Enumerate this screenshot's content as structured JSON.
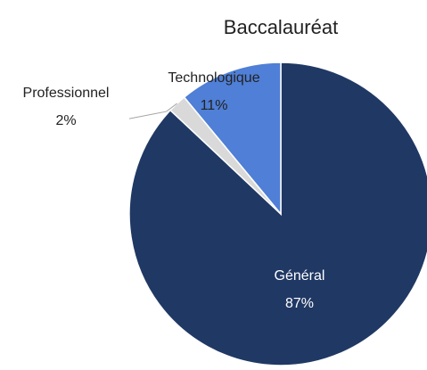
{
  "chart_data": {
    "type": "pie",
    "title": "Baccalauréat",
    "categories": [
      "Général",
      "Professionnel",
      "Technologique"
    ],
    "values": [
      87,
      2,
      11
    ],
    "value_labels": [
      "87%",
      "2%",
      "11%"
    ],
    "colors": [
      "#203864",
      "#d9d9d9",
      "#4f7fd6"
    ]
  }
}
